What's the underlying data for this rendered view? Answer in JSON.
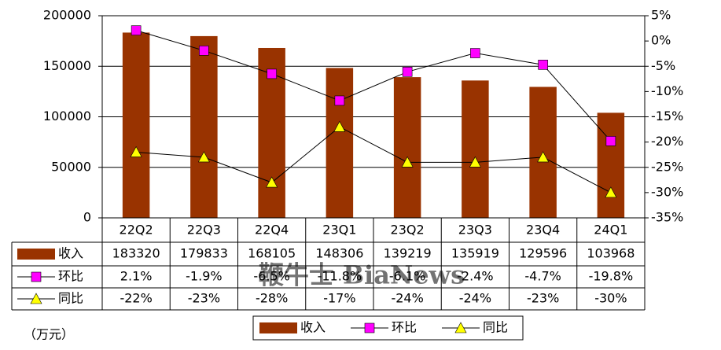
{
  "chart_data": {
    "type": "bar",
    "categories": [
      "22Q2",
      "22Q3",
      "22Q4",
      "23Q1",
      "23Q2",
      "23Q3",
      "23Q4",
      "24Q1"
    ],
    "series": [
      {
        "name": "收入",
        "color": "#993300",
        "values": [
          183320,
          179833,
          168105,
          148306,
          139219,
          135919,
          129596,
          103968
        ]
      },
      {
        "name": "环比",
        "color": "#ff00ff",
        "axis": "y2",
        "values": [
          2.1,
          -1.9,
          -6.5,
          -11.8,
          -6.1,
          -2.4,
          -4.7,
          -19.8
        ],
        "value_labels": [
          "2.1%",
          "-1.9%",
          "-6.5%",
          "-11.8%",
          "-6.1%",
          "-2.4%",
          "-4.7%",
          "-19.8%"
        ]
      },
      {
        "name": "同比",
        "color": "#ffff00",
        "axis": "y2",
        "values": [
          -22,
          -23,
          -28,
          -17,
          -24,
          -24,
          -23,
          -30
        ],
        "value_labels": [
          "-22%",
          "-23%",
          "-28%",
          "-17%",
          "-24%",
          "-24%",
          "-23%",
          "-30%"
        ]
      }
    ],
    "ylim": [
      0,
      200000
    ],
    "yticks": [
      0,
      50000,
      100000,
      150000,
      200000
    ],
    "y2lim": [
      -35,
      5
    ],
    "y2ticks": [
      {
        "value": 5,
        "label": "5%"
      },
      {
        "value": 0,
        "label": "0%"
      },
      {
        "value": -5,
        "label": "-5%"
      },
      {
        "value": -10,
        "label": "-10%"
      },
      {
        "value": -15,
        "label": "-15%"
      },
      {
        "value": -20,
        "label": "-20%"
      },
      {
        "value": -25,
        "label": "-25%"
      },
      {
        "value": -30,
        "label": "-30%"
      },
      {
        "value": -35,
        "label": "-35%"
      }
    ],
    "grid": true,
    "legend": "bottom",
    "unit": "（万元）",
    "watermark": "鞭牛士 BiaNews"
  }
}
